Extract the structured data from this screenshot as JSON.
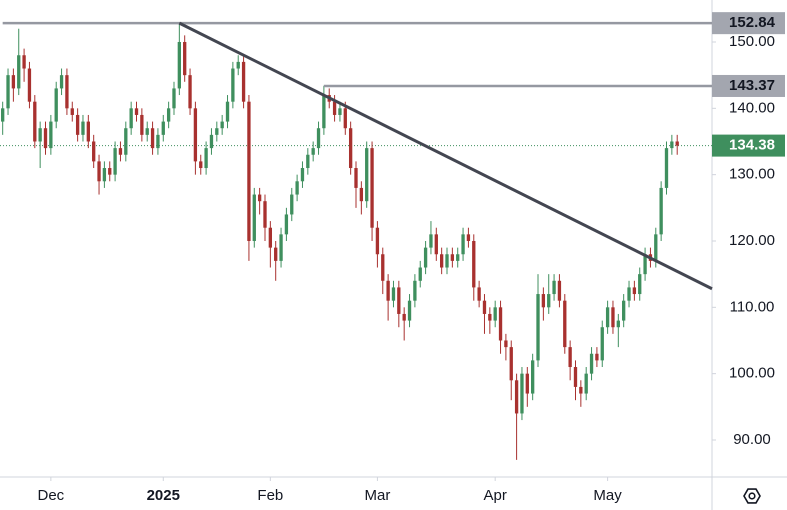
{
  "chart_data": {
    "type": "candlestick",
    "up_color": "#3f8f5e",
    "down_color": "#a8312f",
    "xlim": [
      -0.5,
      132.5
    ],
    "ylim": [
      84.42,
      156.33
    ],
    "yticks": [
      {
        "value": 90,
        "label": "90.00"
      },
      {
        "value": 100,
        "label": "100.00"
      },
      {
        "value": 110,
        "label": "110.00"
      },
      {
        "value": 120,
        "label": "120.00"
      },
      {
        "value": 130,
        "label": "130.00"
      },
      {
        "value": 140,
        "label": "140.00"
      },
      {
        "value": 150,
        "label": "150.00"
      }
    ],
    "xticks": [
      {
        "value": 9,
        "label": "Dec"
      },
      {
        "value": 30,
        "label": "2025"
      },
      {
        "value": 50,
        "label": "Feb"
      },
      {
        "value": 70,
        "label": "Mar"
      },
      {
        "value": 92,
        "label": "Apr"
      },
      {
        "value": 113,
        "label": "May"
      }
    ],
    "levels": [
      {
        "value": 152.84,
        "from": 0
      },
      {
        "value": 143.37,
        "from": 60
      }
    ],
    "last_price": 134.38,
    "trendline": [
      [
        33,
        152.84
      ],
      [
        132.5,
        112.8
      ]
    ],
    "candles": [
      [
        138,
        141,
        136,
        140
      ],
      [
        140,
        146,
        139,
        145
      ],
      [
        145,
        146,
        141,
        143
      ],
      [
        143,
        152,
        142,
        148
      ],
      [
        148,
        149,
        144,
        146
      ],
      [
        146,
        147,
        140,
        141
      ],
      [
        141,
        142,
        134,
        135
      ],
      [
        135,
        138,
        131,
        137
      ],
      [
        137,
        138,
        133,
        134
      ],
      [
        134,
        139,
        133,
        138
      ],
      [
        138,
        144,
        137,
        143
      ],
      [
        143,
        146,
        142,
        145
      ],
      [
        145,
        146,
        139,
        140
      ],
      [
        140,
        141,
        138,
        139
      ],
      [
        139,
        140,
        135,
        136
      ],
      [
        136,
        139,
        135,
        138
      ],
      [
        138,
        139,
        134,
        135
      ],
      [
        135,
        136,
        131,
        132
      ],
      [
        132,
        133,
        127,
        129
      ],
      [
        129,
        132,
        128,
        131
      ],
      [
        131,
        132,
        129,
        130
      ],
      [
        130,
        135,
        129,
        134
      ],
      [
        134,
        135,
        132,
        133
      ],
      [
        133,
        138,
        132,
        137
      ],
      [
        137,
        141,
        136,
        140
      ],
      [
        140,
        141,
        138,
        139
      ],
      [
        139,
        140,
        135,
        136
      ],
      [
        136,
        138,
        135,
        137
      ],
      [
        137,
        138,
        133,
        134
      ],
      [
        134,
        137,
        133,
        136
      ],
      [
        136,
        139,
        135,
        138
      ],
      [
        138,
        141,
        137,
        140
      ],
      [
        140,
        144,
        139,
        143
      ],
      [
        143,
        152.84,
        142,
        150
      ],
      [
        150,
        151,
        144,
        145
      ],
      [
        145,
        146,
        139,
        140
      ],
      [
        140,
        141,
        130,
        132
      ],
      [
        132,
        133,
        130,
        131
      ],
      [
        131,
        135,
        130,
        134
      ],
      [
        134,
        137,
        133,
        136
      ],
      [
        136,
        138,
        135,
        137
      ],
      [
        137,
        139,
        136,
        138
      ],
      [
        138,
        142,
        137,
        141
      ],
      [
        141,
        147,
        140,
        146
      ],
      [
        146,
        148,
        145,
        147
      ],
      [
        147,
        148,
        140,
        141
      ],
      [
        141,
        142,
        117,
        120
      ],
      [
        120,
        128,
        119,
        127
      ],
      [
        127,
        128,
        124,
        126
      ],
      [
        126,
        127,
        120,
        122
      ],
      [
        122,
        123,
        116,
        119
      ],
      [
        119,
        120,
        114,
        117
      ],
      [
        117,
        122,
        116,
        121
      ],
      [
        121,
        125,
        120,
        124
      ],
      [
        124,
        128,
        123,
        127
      ],
      [
        127,
        130,
        126,
        129
      ],
      [
        129,
        132,
        128,
        131
      ],
      [
        131,
        134,
        130,
        133
      ],
      [
        133,
        135,
        132,
        134
      ],
      [
        134,
        138,
        133,
        137
      ],
      [
        137,
        143.4,
        136,
        142
      ],
      [
        142,
        143,
        140,
        141
      ],
      [
        141,
        142,
        138,
        139
      ],
      [
        139,
        141,
        138,
        140
      ],
      [
        140,
        141,
        136,
        137
      ],
      [
        137,
        138,
        130,
        131
      ],
      [
        131,
        132,
        125,
        128
      ],
      [
        128,
        129,
        124,
        126
      ],
      [
        126,
        135,
        125,
        134
      ],
      [
        134,
        135,
        120,
        122
      ],
      [
        122,
        123,
        116,
        118
      ],
      [
        118,
        119,
        112,
        114
      ],
      [
        114,
        115,
        108,
        111
      ],
      [
        111,
        114,
        110,
        113
      ],
      [
        113,
        114,
        107,
        109
      ],
      [
        109,
        110,
        105,
        108
      ],
      [
        108,
        112,
        107,
        111
      ],
      [
        111,
        115,
        110,
        114
      ],
      [
        114,
        117,
        113,
        116
      ],
      [
        116,
        120,
        115,
        119
      ],
      [
        119,
        123,
        118,
        121
      ],
      [
        121,
        122,
        117,
        118
      ],
      [
        118,
        119,
        115,
        116
      ],
      [
        116,
        119,
        115,
        118
      ],
      [
        118,
        119,
        116,
        117
      ],
      [
        117,
        119,
        116,
        118
      ],
      [
        118,
        122,
        117,
        121
      ],
      [
        121,
        122,
        119,
        120
      ],
      [
        120,
        121,
        111,
        113
      ],
      [
        113,
        114,
        110,
        111
      ],
      [
        111,
        112,
        106,
        109
      ],
      [
        109,
        110,
        106,
        108
      ],
      [
        108,
        111,
        107,
        110
      ],
      [
        110,
        111,
        103,
        105
      ],
      [
        105,
        106,
        102,
        104
      ],
      [
        104,
        105,
        96,
        99
      ],
      [
        99,
        100,
        87,
        94
      ],
      [
        94,
        101,
        93,
        100
      ],
      [
        100,
        101,
        95,
        97
      ],
      [
        97,
        103,
        96,
        102
      ],
      [
        102,
        115,
        101,
        112
      ],
      [
        112,
        113,
        108,
        110
      ],
      [
        110,
        115,
        109,
        112
      ],
      [
        112,
        115,
        111,
        114
      ],
      [
        114,
        115,
        110,
        111
      ],
      [
        111,
        112,
        103,
        104
      ],
      [
        104,
        105,
        99,
        101
      ],
      [
        101,
        102,
        96,
        98
      ],
      [
        98,
        99,
        95,
        97
      ],
      [
        97,
        101,
        96,
        100
      ],
      [
        100,
        104,
        99,
        103
      ],
      [
        103,
        104,
        101,
        102
      ],
      [
        102,
        108,
        101,
        107
      ],
      [
        107,
        111,
        106,
        110
      ],
      [
        110,
        111,
        106,
        107
      ],
      [
        107,
        109,
        104,
        108
      ],
      [
        108,
        112,
        107,
        111
      ],
      [
        111,
        114,
        110,
        113
      ],
      [
        113,
        114,
        111,
        112
      ],
      [
        112,
        116,
        111,
        115
      ],
      [
        115,
        119,
        114,
        118
      ],
      [
        118,
        119,
        116,
        117
      ],
      [
        117,
        122,
        116,
        121
      ],
      [
        121,
        129,
        120,
        128
      ],
      [
        128,
        135,
        127,
        134
      ],
      [
        134,
        136,
        133,
        135
      ],
      [
        135,
        136,
        133,
        134.38
      ]
    ]
  }
}
